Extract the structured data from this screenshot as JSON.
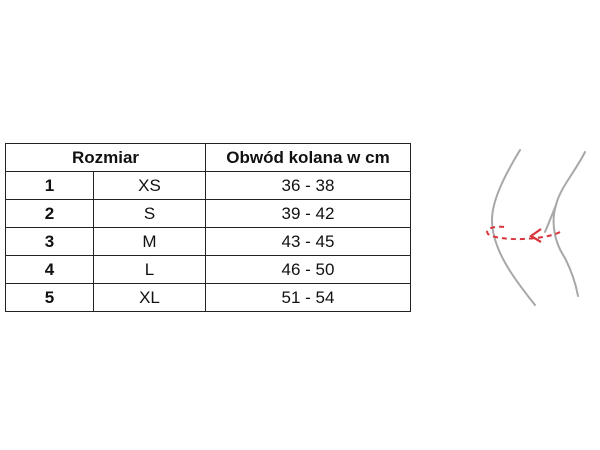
{
  "table": {
    "header": [
      "Rozmiar",
      "Obwód kolana w cm"
    ],
    "rows": [
      [
        "1",
        "XS",
        "36 - 38"
      ],
      [
        "2",
        "S",
        "39 - 42"
      ],
      [
        "3",
        "M",
        "43 - 45"
      ],
      [
        "4",
        "L",
        "46 - 50"
      ],
      [
        "5",
        "XL",
        "51 - 54"
      ]
    ]
  }
}
